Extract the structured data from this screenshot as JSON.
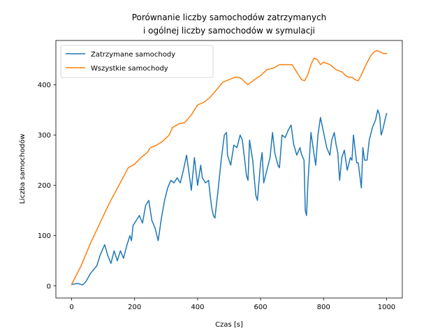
{
  "chart_data": {
    "type": "line",
    "title": [
      "Porównanie liczby samochodów zatrzymanych",
      "i ogólnej liczby samochodów w symulacji"
    ],
    "xlabel": "Czas [s]",
    "ylabel": "Liczba samochodów",
    "xlim": [
      -50,
      1050
    ],
    "ylim": [
      -24,
      488
    ],
    "xticks": [
      0,
      200,
      400,
      600,
      800,
      1000
    ],
    "yticks": [
      0,
      100,
      200,
      300,
      400
    ],
    "grid": false,
    "legend_position": "upper-left",
    "series": [
      {
        "name": "Zatrzymane samochody",
        "color": "#1f77b4",
        "points": [
          [
            0,
            3
          ],
          [
            20,
            5
          ],
          [
            35,
            2
          ],
          [
            45,
            8
          ],
          [
            60,
            25
          ],
          [
            80,
            40
          ],
          [
            90,
            60
          ],
          [
            100,
            75
          ],
          [
            105,
            82
          ],
          [
            115,
            60
          ],
          [
            125,
            45
          ],
          [
            135,
            70
          ],
          [
            145,
            50
          ],
          [
            155,
            70
          ],
          [
            165,
            55
          ],
          [
            175,
            80
          ],
          [
            185,
            100
          ],
          [
            190,
            90
          ],
          [
            195,
            120
          ],
          [
            205,
            130
          ],
          [
            215,
            140
          ],
          [
            225,
            125
          ],
          [
            235,
            160
          ],
          [
            245,
            170
          ],
          [
            255,
            130
          ],
          [
            265,
            115
          ],
          [
            275,
            90
          ],
          [
            285,
            135
          ],
          [
            295,
            170
          ],
          [
            305,
            195
          ],
          [
            315,
            210
          ],
          [
            325,
            205
          ],
          [
            335,
            215
          ],
          [
            345,
            205
          ],
          [
            355,
            230
          ],
          [
            365,
            260
          ],
          [
            375,
            215
          ],
          [
            380,
            190
          ],
          [
            390,
            255
          ],
          [
            400,
            200
          ],
          [
            410,
            240
          ],
          [
            415,
            215
          ],
          [
            425,
            205
          ],
          [
            435,
            210
          ],
          [
            440,
            180
          ],
          [
            445,
            155
          ],
          [
            450,
            140
          ],
          [
            455,
            135
          ],
          [
            465,
            190
          ],
          [
            475,
            250
          ],
          [
            485,
            300
          ],
          [
            492,
            305
          ],
          [
            495,
            260
          ],
          [
            505,
            240
          ],
          [
            515,
            280
          ],
          [
            525,
            275
          ],
          [
            535,
            300
          ],
          [
            542,
            290
          ],
          [
            548,
            260
          ],
          [
            555,
            220
          ],
          [
            560,
            210
          ],
          [
            565,
            290
          ],
          [
            575,
            250
          ],
          [
            585,
            180
          ],
          [
            590,
            170
          ],
          [
            600,
            245
          ],
          [
            605,
            265
          ],
          [
            610,
            205
          ],
          [
            620,
            230
          ],
          [
            630,
            255
          ],
          [
            638,
            305
          ],
          [
            645,
            265
          ],
          [
            655,
            240
          ],
          [
            660,
            235
          ],
          [
            668,
            300
          ],
          [
            678,
            295
          ],
          [
            688,
            310
          ],
          [
            697,
            320
          ],
          [
            705,
            282
          ],
          [
            715,
            260
          ],
          [
            725,
            275
          ],
          [
            730,
            262
          ],
          [
            738,
            250
          ],
          [
            742,
            150
          ],
          [
            746,
            140
          ],
          [
            750,
            200
          ],
          [
            760,
            305
          ],
          [
            768,
            270
          ],
          [
            775,
            240
          ],
          [
            782,
            300
          ],
          [
            790,
            335
          ],
          [
            800,
            305
          ],
          [
            810,
            275
          ],
          [
            820,
            260
          ],
          [
            826,
            290
          ],
          [
            834,
            305
          ],
          [
            840,
            280
          ],
          [
            845,
            265
          ],
          [
            851,
            210
          ],
          [
            858,
            255
          ],
          [
            866,
            270
          ],
          [
            875,
            230
          ],
          [
            885,
            255
          ],
          [
            890,
            250
          ],
          [
            895,
            300
          ],
          [
            905,
            245
          ],
          [
            910,
            245
          ],
          [
            915,
            220
          ],
          [
            920,
            195
          ],
          [
            925,
            275
          ],
          [
            930,
            250
          ],
          [
            938,
            250
          ],
          [
            945,
            290
          ],
          [
            955,
            315
          ],
          [
            965,
            330
          ],
          [
            972,
            350
          ],
          [
            978,
            340
          ],
          [
            983,
            300
          ],
          [
            988,
            310
          ],
          [
            995,
            330
          ],
          [
            1000,
            343
          ]
        ]
      },
      {
        "name": "Wszystkie samochody",
        "color": "#ff7f0e",
        "points": [
          [
            0,
            3
          ],
          [
            30,
            40
          ],
          [
            60,
            85
          ],
          [
            90,
            125
          ],
          [
            120,
            165
          ],
          [
            150,
            200
          ],
          [
            180,
            235
          ],
          [
            200,
            242
          ],
          [
            220,
            255
          ],
          [
            240,
            265
          ],
          [
            250,
            275
          ],
          [
            270,
            280
          ],
          [
            290,
            288
          ],
          [
            310,
            300
          ],
          [
            320,
            315
          ],
          [
            340,
            322
          ],
          [
            360,
            325
          ],
          [
            380,
            340
          ],
          [
            400,
            360
          ],
          [
            420,
            365
          ],
          [
            440,
            375
          ],
          [
            460,
            390
          ],
          [
            480,
            405
          ],
          [
            500,
            410
          ],
          [
            520,
            415
          ],
          [
            530,
            415
          ],
          [
            540,
            412
          ],
          [
            550,
            405
          ],
          [
            560,
            400
          ],
          [
            570,
            405
          ],
          [
            580,
            410
          ],
          [
            600,
            418
          ],
          [
            620,
            430
          ],
          [
            640,
            433
          ],
          [
            660,
            440
          ],
          [
            680,
            440
          ],
          [
            700,
            440
          ],
          [
            710,
            430
          ],
          [
            720,
            420
          ],
          [
            730,
            410
          ],
          [
            740,
            408
          ],
          [
            750,
            420
          ],
          [
            760,
            440
          ],
          [
            770,
            453
          ],
          [
            780,
            450
          ],
          [
            790,
            440
          ],
          [
            800,
            445
          ],
          [
            820,
            440
          ],
          [
            840,
            430
          ],
          [
            860,
            425
          ],
          [
            870,
            418
          ],
          [
            880,
            415
          ],
          [
            890,
            415
          ],
          [
            900,
            410
          ],
          [
            910,
            408
          ],
          [
            920,
            420
          ],
          [
            935,
            440
          ],
          [
            950,
            458
          ],
          [
            960,
            465
          ],
          [
            970,
            468
          ],
          [
            980,
            465
          ],
          [
            990,
            462
          ],
          [
            1000,
            462
          ]
        ]
      }
    ]
  }
}
